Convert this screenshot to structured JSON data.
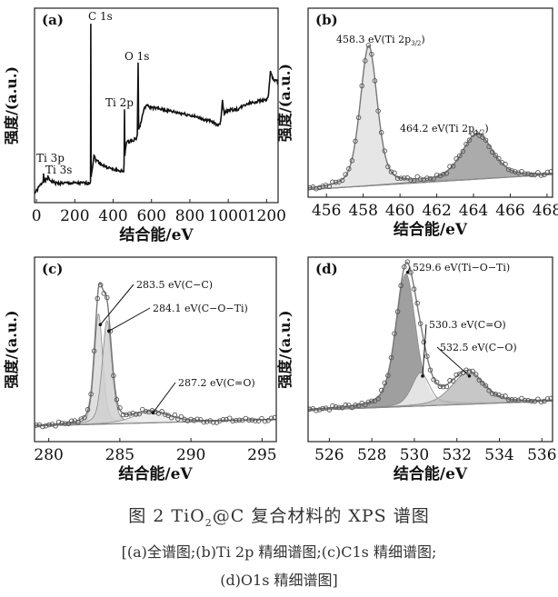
{
  "caption": {
    "title_prefix": "图 2   TiO",
    "title_sub": "2",
    "title_suffix": "@C 复合材料的 XPS 谱图",
    "line2": "[(a)全谱图;(b)Ti 2p 精细谱图;(c)C1s 精细谱图;",
    "line3": "(d)O1s 精细谱图]"
  },
  "chart_data": [
    {
      "panel": "(a)",
      "type": "line",
      "xlabel": "结合能/eV",
      "ylabel": "强度/(a.u.)",
      "xlim": [
        -10,
        1260
      ],
      "ylim": [
        0,
        100
      ],
      "xticks": [
        0,
        200,
        400,
        600,
        800,
        1000,
        1200
      ],
      "points": [
        [
          -10,
          5
        ],
        [
          0,
          6
        ],
        [
          20,
          9
        ],
        [
          35,
          11
        ],
        [
          37,
          15
        ],
        [
          39,
          11
        ],
        [
          58,
          12
        ],
        [
          60,
          14
        ],
        [
          62,
          12
        ],
        [
          100,
          10
        ],
        [
          200,
          10
        ],
        [
          280,
          10
        ],
        [
          282,
          11
        ],
        [
          283.5,
          92
        ],
        [
          285,
          14
        ],
        [
          290,
          17
        ],
        [
          300,
          24
        ],
        [
          310,
          22
        ],
        [
          350,
          19
        ],
        [
          400,
          17
        ],
        [
          455,
          16
        ],
        [
          457,
          20
        ],
        [
          459,
          48
        ],
        [
          461,
          24
        ],
        [
          463,
          27
        ],
        [
          470,
          31
        ],
        [
          500,
          32
        ],
        [
          520,
          33
        ],
        [
          526,
          35
        ],
        [
          530,
          72
        ],
        [
          533,
          38
        ],
        [
          540,
          39
        ],
        [
          555,
          46
        ],
        [
          570,
          50
        ],
        [
          600,
          49
        ],
        [
          700,
          47
        ],
        [
          800,
          45
        ],
        [
          900,
          42
        ],
        [
          950,
          40
        ],
        [
          960,
          41
        ],
        [
          970,
          53
        ],
        [
          975,
          48
        ],
        [
          980,
          46
        ],
        [
          1000,
          47.5
        ],
        [
          1050,
          48
        ],
        [
          1100,
          51
        ],
        [
          1150,
          52
        ],
        [
          1200,
          53
        ],
        [
          1210,
          55
        ],
        [
          1220,
          68
        ],
        [
          1230,
          64
        ],
        [
          1240,
          63
        ],
        [
          1260,
          62
        ]
      ],
      "annotations": [
        {
          "text": "C 1s",
          "x": 283.5
        },
        {
          "text": "O 1s",
          "x": 530
        },
        {
          "text": "Ti 2p",
          "x": 459
        },
        {
          "text": "Ti 3p",
          "x": 37
        },
        {
          "text": "Ti 3s",
          "x": 60
        }
      ]
    },
    {
      "panel": "(b)",
      "type": "line",
      "xlabel": "结合能/eV",
      "ylabel": "强度/(a.u.)",
      "xlim": [
        455,
        468.3
      ],
      "ylim": [
        0,
        100
      ],
      "xticks": [
        456,
        458,
        460,
        462,
        464,
        466,
        468
      ],
      "baseline": [
        [
          455,
          4
        ],
        [
          468.3,
          12
        ]
      ],
      "components": [
        {
          "label": "458.3 eV(Ti 2p",
          "sub": "3/2",
          "center": 458.3,
          "height": 74,
          "fwhm": 1.1,
          "fill": "#e2e2e2"
        },
        {
          "label": "464.2 eV(Ti 2p",
          "sub": "1/2",
          "center": 464.2,
          "height": 24,
          "fwhm": 2.0,
          "fill": "#9c9c9c"
        }
      ]
    },
    {
      "panel": "(c)",
      "type": "line",
      "xlabel": "结合能/eV",
      "ylabel": "强度/(a.u.)",
      "xlim": [
        279,
        296
      ],
      "ylim": [
        0,
        100
      ],
      "xticks": [
        280,
        285,
        290,
        295
      ],
      "baseline": [
        [
          279,
          8.5
        ],
        [
          296,
          12
        ]
      ],
      "components": [
        {
          "label": "283.5 eV(C−C)",
          "center": 283.5,
          "height": 60,
          "fwhm": 0.7,
          "fill": "#d9d9d9"
        },
        {
          "label": "284.1 eV(C−O−Ti)",
          "center": 284.1,
          "height": 56,
          "fwhm": 0.8,
          "fill": "#d0d0d0"
        },
        {
          "label": "287.2 eV(C=O)",
          "center": 287.2,
          "height": 6,
          "fwhm": 3.0,
          "fill": "#ebebeb"
        }
      ]
    },
    {
      "panel": "(d)",
      "type": "line",
      "xlabel": "结合能/eV",
      "ylabel": "强度/(a.u.)",
      "xlim": [
        525,
        536.5
      ],
      "ylim": [
        0,
        100
      ],
      "xticks": [
        526,
        528,
        530,
        532,
        534,
        536
      ],
      "baseline": [
        [
          525,
          17
        ],
        [
          536.5,
          22
        ]
      ],
      "components": [
        {
          "label": "529.6 eV(Ti−O−Ti)",
          "center": 529.6,
          "height": 72,
          "fwhm": 1.1,
          "fill": "#8e8e8e"
        },
        {
          "label": "530.3 eV(C=O)",
          "center": 530.3,
          "height": 18,
          "fwhm": 1.0,
          "fill": "#f0f0f0"
        },
        {
          "label": "532.5 eV(C−O)",
          "center": 532.5,
          "height": 17,
          "fwhm": 1.8,
          "fill": "#bdbdbd"
        }
      ]
    }
  ]
}
